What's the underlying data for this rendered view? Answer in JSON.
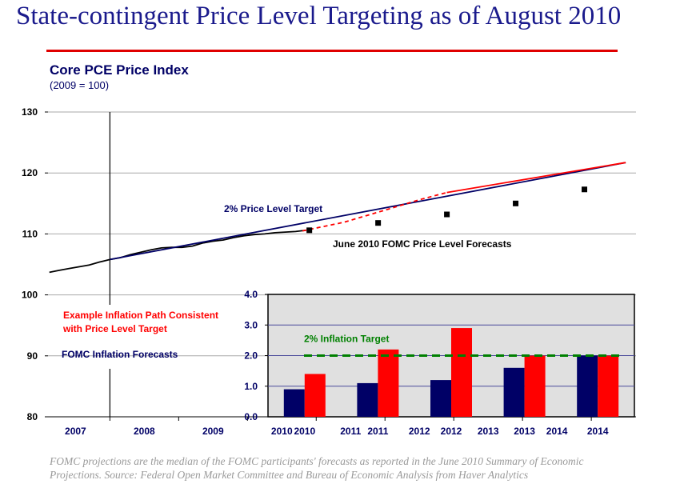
{
  "slide": {
    "title": "State-contingent Price Level Targeting as of August 2010",
    "footnote": "FOMC projections are the median of the FOMC participants' forecasts as reported in the June 2010 Summary of Economic Projections.  Source:  Federal Open Market Committee and Bureau of Economic Analysis from Haver Analytics"
  },
  "colors": {
    "title": "#1a1a8c",
    "rule": "#e00000",
    "navy": "#000066",
    "red": "#ff0000",
    "green": "#008000",
    "inset_bg": "#e0e0e0"
  },
  "chart_data": [
    {
      "type": "line",
      "title": "Core PCE Price Index",
      "subtitle": "(2009 = 100)",
      "ylim": [
        80,
        130
      ],
      "yticks": [
        80,
        90,
        100,
        110,
        120,
        130
      ],
      "x_range": [
        2006.6,
        2015.15
      ],
      "x_ticklabels": [
        "2007",
        "2008",
        "2009",
        "2010",
        "2011",
        "2012",
        "2013",
        "2014"
      ],
      "x_tick_positions": [
        2007.0,
        2008.0,
        2009.0,
        2010.0,
        2011.0,
        2012.0,
        2013.0,
        2014.0
      ],
      "vline_x": 2007.5,
      "series": [
        {
          "name": "Core PCE actual",
          "style": "solid-black",
          "x": [
            2006.62,
            2006.75,
            2006.9,
            2007.05,
            2007.2,
            2007.35,
            2007.5,
            2007.65,
            2007.8,
            2007.95,
            2008.1,
            2008.25,
            2008.4,
            2008.55,
            2008.7,
            2008.85,
            2009.0,
            2009.15,
            2009.3,
            2009.45,
            2009.6,
            2009.75,
            2009.9,
            2010.05,
            2010.2,
            2010.35
          ],
          "y": [
            103.7,
            104.0,
            104.3,
            104.6,
            104.9,
            105.4,
            105.8,
            106.1,
            106.6,
            107.0,
            107.4,
            107.7,
            107.8,
            107.8,
            108.0,
            108.5,
            108.8,
            109.0,
            109.4,
            109.7,
            109.9,
            110.0,
            110.2,
            110.3,
            110.4,
            110.6
          ]
        },
        {
          "name": "2% Price Level Target",
          "style": "solid-navy",
          "x": [
            2007.5,
            2015.0
          ],
          "y": [
            105.8,
            121.7
          ]
        },
        {
          "name": "Example path",
          "style": "dashed-red",
          "x": [
            2010.3,
            2010.9,
            2011.5,
            2012.0,
            2012.4
          ],
          "y": [
            110.5,
            111.9,
            113.9,
            115.6,
            116.8
          ]
        },
        {
          "name": "June 2010 FOMC Price Level Forecasts",
          "style": "square-markers",
          "x": [
            2010.4,
            2011.4,
            2012.4,
            2013.4,
            2014.4
          ],
          "y": [
            110.6,
            111.8,
            113.2,
            115.0,
            117.3
          ]
        },
        {
          "name": "Red line to end",
          "style": "solid-red",
          "x": [
            2012.4,
            2015.0
          ],
          "y": [
            116.8,
            121.7
          ]
        }
      ],
      "annotations": [
        {
          "text": "2% Price Level Target",
          "color": "navy"
        },
        {
          "text": "June 2010 FOMC Price Level Forecasts",
          "color": "black"
        }
      ]
    },
    {
      "type": "bar",
      "categories": [
        "2010",
        "2011",
        "2012",
        "2013",
        "2014"
      ],
      "ylim": [
        0,
        4
      ],
      "yticks": [
        "0.0",
        "1.0",
        "2.0",
        "3.0",
        "4.0"
      ],
      "ytick_values": [
        0,
        1,
        2,
        3,
        4
      ],
      "series": [
        {
          "name": "FOMC Inflation Forecasts",
          "color": "#000066",
          "values": [
            0.9,
            1.1,
            1.2,
            1.6,
            2.0
          ]
        },
        {
          "name": "Example Inflation Path Consistent with Price Level Target",
          "color": "#ff0000",
          "values": [
            1.4,
            2.2,
            2.9,
            2.0,
            2.0
          ]
        }
      ],
      "reference_line": {
        "label": "2% Inflation Target",
        "value": 2.0
      }
    }
  ],
  "legend": {
    "red_line1": "Example Inflation Path Consistent",
    "red_line2": "with Price Level Target",
    "navy": "FOMC Inflation Forecasts"
  }
}
